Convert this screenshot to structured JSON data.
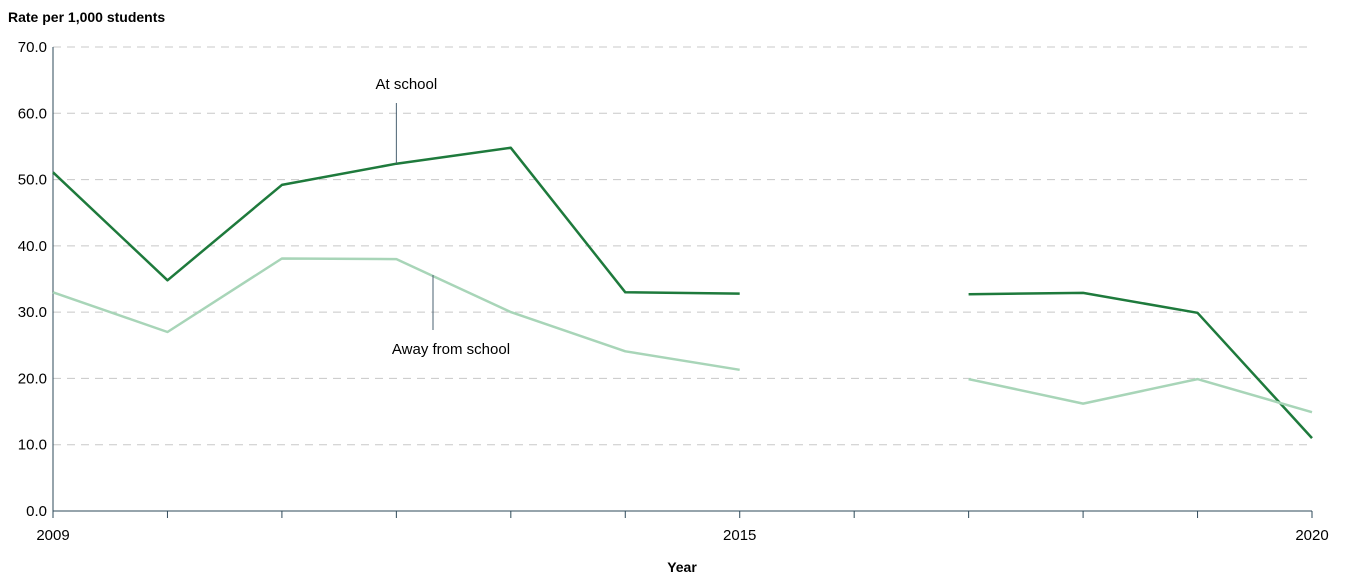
{
  "chart_data": {
    "type": "line",
    "ylabel": "Rate per 1,000 students",
    "xlabel": "Year",
    "ylim": [
      0,
      70
    ],
    "xlim": [
      2009,
      2020
    ],
    "yticks": [
      "0.0",
      "10.0",
      "20.0",
      "30.0",
      "40.0",
      "50.0",
      "60.0",
      "70.0"
    ],
    "xticks_labeled": [
      "2009",
      "2015",
      "2020"
    ],
    "x": [
      2009,
      2010,
      2011,
      2012,
      2013,
      2014,
      2015,
      2016,
      2017,
      2018,
      2019,
      2020
    ],
    "series": [
      {
        "name": "At school",
        "color": "#1e7a3c",
        "values": [
          51.1,
          34.8,
          49.2,
          52.4,
          54.8,
          33.0,
          32.8,
          null,
          32.7,
          32.9,
          29.9,
          11.0
        ]
      },
      {
        "name": "Away from school",
        "color": "#a8d5b8",
        "values": [
          33.0,
          27.0,
          38.1,
          38.0,
          30.0,
          24.1,
          21.3,
          null,
          19.9,
          16.2,
          19.9,
          14.9
        ]
      }
    ],
    "annotations": [
      "At school",
      "Away from school"
    ],
    "grid": "horizontal dashed"
  }
}
